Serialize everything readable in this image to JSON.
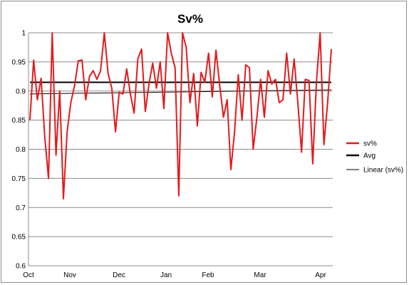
{
  "chart_data": {
    "type": "line",
    "title": "Sv%",
    "xlabel": "",
    "ylabel": "",
    "ylim": [
      0.6,
      1
    ],
    "yticks": [
      "0.6",
      "0.65",
      "0.7",
      "0.75",
      "0.8",
      "0.85",
      "0.9",
      "0.95",
      "1"
    ],
    "xtick_labels": [
      "Oct",
      "Nov",
      "Dec",
      "Jan",
      "Feb",
      "Mar",
      "Apr"
    ],
    "grid": "horizontal",
    "legend_position": "right",
    "series": [
      {
        "name": "sv%",
        "color": "#e31a1c",
        "values": [
          0.85,
          0.953,
          0.885,
          0.922,
          0.82,
          0.75,
          1.0,
          0.79,
          0.9,
          0.715,
          0.83,
          0.88,
          0.91,
          0.952,
          0.953,
          0.885,
          0.925,
          0.935,
          0.92,
          0.935,
          1.0,
          0.93,
          0.905,
          0.83,
          0.898,
          0.895,
          0.938,
          0.895,
          0.862,
          0.955,
          0.972,
          0.865,
          0.912,
          0.948,
          0.905,
          0.95,
          0.87,
          1.0,
          0.965,
          0.94,
          0.72,
          1.0,
          0.975,
          0.88,
          0.93,
          0.84,
          0.932,
          0.915,
          0.965,
          0.89,
          0.97,
          0.91,
          0.855,
          0.885,
          0.765,
          0.83,
          0.928,
          0.85,
          0.945,
          0.94,
          0.8,
          0.855,
          0.92,
          0.855,
          0.935,
          0.912,
          0.92,
          0.88,
          0.885,
          0.965,
          0.895,
          0.955,
          0.88,
          0.795,
          0.92,
          0.918,
          0.775,
          0.915,
          1.0,
          0.808,
          0.88,
          0.972
        ]
      },
      {
        "name": "Avg",
        "color": "#000000",
        "values": [
          0.915,
          0.915
        ]
      },
      {
        "name": "Linear (sv%)",
        "color": "#000000",
        "values": [
          0.895,
          0.902
        ]
      }
    ]
  }
}
